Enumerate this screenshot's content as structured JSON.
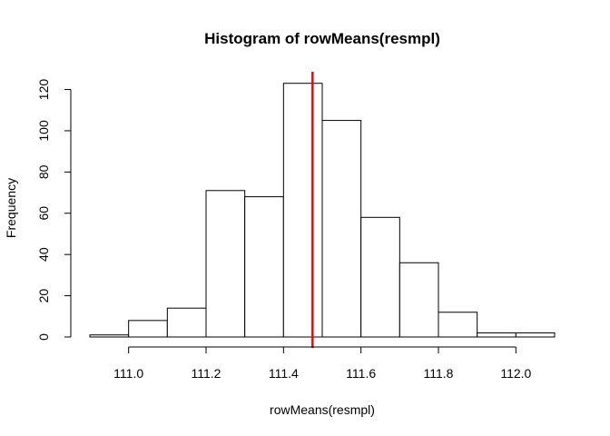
{
  "chart_data": {
    "type": "bar",
    "title": "Histogram of rowMeans(resmpl)",
    "xlabel": "rowMeans(resmpl)",
    "ylabel": "Frequency",
    "bins": [
      {
        "start": 110.9,
        "end": 111.0,
        "count": 1
      },
      {
        "start": 111.0,
        "end": 111.1,
        "count": 8
      },
      {
        "start": 111.1,
        "end": 111.2,
        "count": 14
      },
      {
        "start": 111.2,
        "end": 111.3,
        "count": 71
      },
      {
        "start": 111.3,
        "end": 111.4,
        "count": 68
      },
      {
        "start": 111.4,
        "end": 111.5,
        "count": 123
      },
      {
        "start": 111.5,
        "end": 111.6,
        "count": 105
      },
      {
        "start": 111.6,
        "end": 111.7,
        "count": 58
      },
      {
        "start": 111.7,
        "end": 111.8,
        "count": 36
      },
      {
        "start": 111.8,
        "end": 111.9,
        "count": 12
      },
      {
        "start": 111.9,
        "end": 112.0,
        "count": 2
      },
      {
        "start": 112.0,
        "end": 112.1,
        "count": 2
      }
    ],
    "x_ticks": [
      "111.0",
      "111.2",
      "111.4",
      "111.6",
      "111.8",
      "112.0"
    ],
    "y_ticks": [
      "0",
      "20",
      "40",
      "60",
      "80",
      "100",
      "120"
    ],
    "xlim": [
      110.9,
      112.1
    ],
    "ylim": [
      0,
      125
    ],
    "vline": {
      "x": 111.475,
      "color": "#ff0000"
    },
    "grid": false,
    "bar_fill": "#ffffff",
    "bar_stroke": "#000000"
  }
}
